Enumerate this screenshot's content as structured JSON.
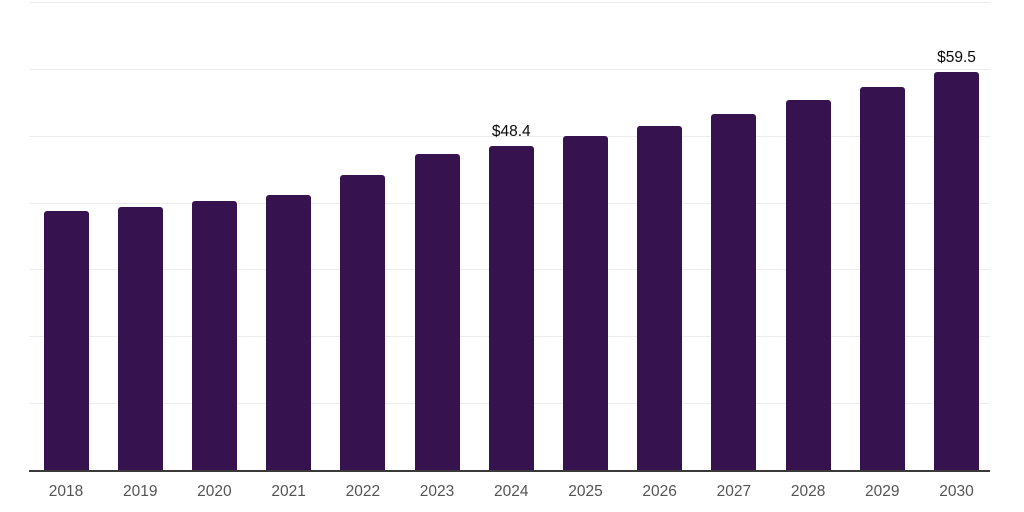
{
  "chart_data": {
    "type": "bar",
    "title": "",
    "xlabel": "",
    "ylabel": "",
    "categories": [
      "2018",
      "2019",
      "2020",
      "2021",
      "2022",
      "2023",
      "2024",
      "2025",
      "2026",
      "2027",
      "2028",
      "2029",
      "2030"
    ],
    "values": [
      38.7,
      39.4,
      40.2,
      41.1,
      44.2,
      47.2,
      48.4,
      50.0,
      51.5,
      53.3,
      55.3,
      57.3,
      59.5
    ],
    "annotations": [
      {
        "category": "2024",
        "text": "$48.4"
      },
      {
        "category": "2030",
        "text": "$59.5"
      }
    ],
    "ylim": [
      0,
      70
    ],
    "gridline_step": 10,
    "grid": "horizontal-only",
    "legend_position": "none",
    "y_tick_labels_visible": false,
    "colors": {
      "bar_fill": "#36124F",
      "gridline": "#EDEDED",
      "axis_line": "#3A3A3A",
      "x_tick_label": "#545454",
      "data_label": "#0A0A0A",
      "background": "#FFFFFF"
    }
  }
}
